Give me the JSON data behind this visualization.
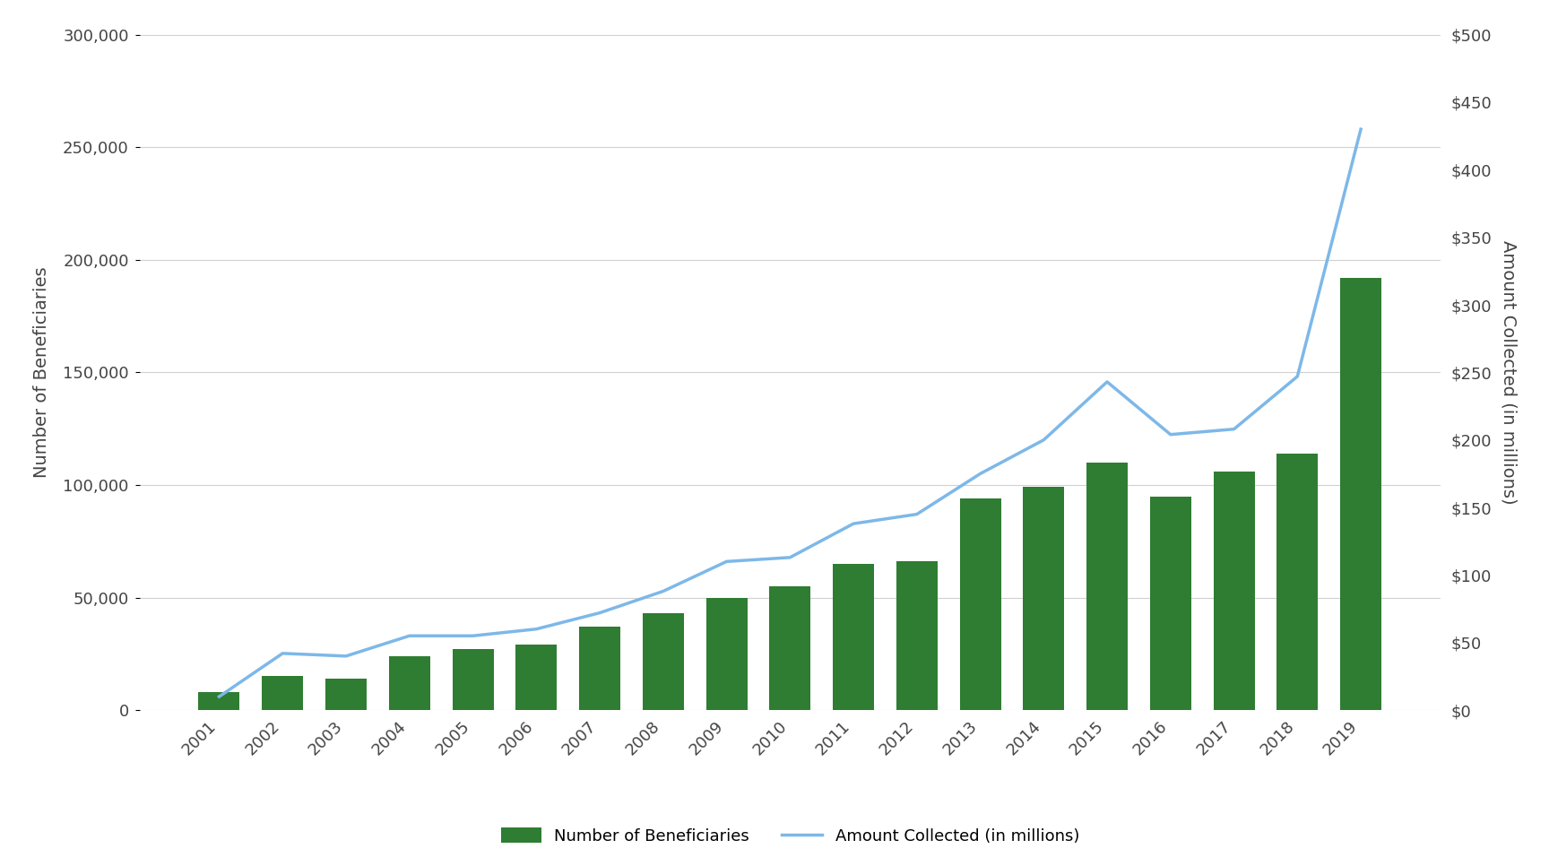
{
  "years": [
    2001,
    2002,
    2003,
    2004,
    2005,
    2006,
    2007,
    2008,
    2009,
    2010,
    2011,
    2012,
    2013,
    2014,
    2015,
    2016,
    2017,
    2018,
    2019
  ],
  "beneficiaries": [
    8000,
    15000,
    14000,
    24000,
    27000,
    29000,
    37000,
    43000,
    50000,
    55000,
    65000,
    66000,
    94000,
    99000,
    110000,
    95000,
    106000,
    114000,
    192000
  ],
  "amount_collected": [
    10,
    42,
    40,
    55,
    55,
    60,
    72,
    88,
    110,
    113,
    138,
    145,
    175,
    200,
    243,
    204,
    208,
    247,
    430
  ],
  "bar_color": "#2e7d32",
  "line_color": "#7db8e8",
  "left_ylabel": "Number of Beneficiaries",
  "right_ylabel": "Amount Collected (in millions)",
  "left_ylim": [
    0,
    300000
  ],
  "right_ylim": [
    0,
    500
  ],
  "left_yticks": [
    0,
    50000,
    100000,
    150000,
    200000,
    250000,
    300000
  ],
  "right_yticks": [
    0,
    50,
    100,
    150,
    200,
    250,
    300,
    350,
    400,
    450,
    500
  ],
  "left_ytick_labels": [
    "0",
    "50,000",
    "100,000",
    "150,000",
    "200,000",
    "250,000",
    "300,000"
  ],
  "right_ytick_labels": [
    "$0",
    "$50",
    "$100",
    "$150",
    "$200",
    "$250",
    "$300",
    "$350",
    "$400",
    "$450",
    "$500"
  ],
  "legend_labels": [
    "Number of Beneficiaries",
    "Amount Collected (in millions)"
  ],
  "background_color": "#ffffff",
  "grid_color": "#d0d0d0",
  "label_fontsize": 14,
  "tick_fontsize": 13,
  "legend_fontsize": 13
}
